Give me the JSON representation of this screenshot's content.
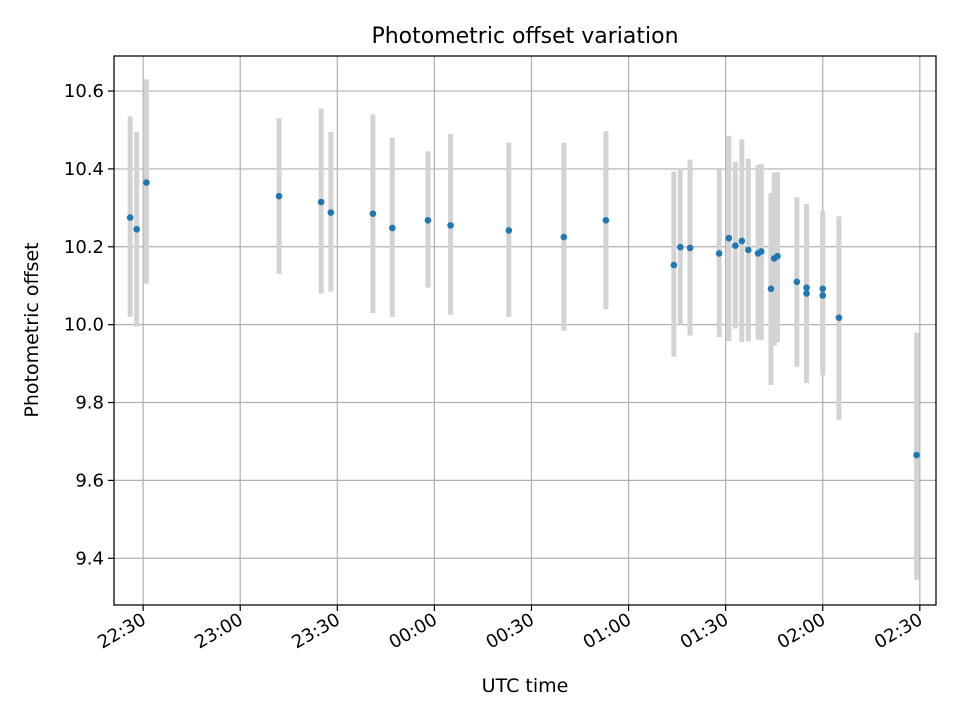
{
  "chart_data": {
    "type": "scatter",
    "title": "Photometric offset variation",
    "xlabel": "UTC time",
    "ylabel": "Photometric offset",
    "x_axis_type": "time",
    "xlim": [
      "22:21",
      "02:35"
    ],
    "ylim": [
      9.28,
      10.69
    ],
    "x_ticks": [
      {
        "label": "22:30",
        "minutes": 1350
      },
      {
        "label": "23:00",
        "minutes": 1380
      },
      {
        "label": "23:30",
        "minutes": 1410
      },
      {
        "label": "00:00",
        "minutes": 1440
      },
      {
        "label": "00:30",
        "minutes": 1470
      },
      {
        "label": "01:00",
        "minutes": 1500
      },
      {
        "label": "01:30",
        "minutes": 1530
      },
      {
        "label": "02:00",
        "minutes": 1560
      },
      {
        "label": "02:30",
        "minutes": 1590
      }
    ],
    "y_ticks": [
      {
        "label": "9.4",
        "value": 9.4
      },
      {
        "label": "9.6",
        "value": 9.6
      },
      {
        "label": "9.8",
        "value": 9.8
      },
      {
        "label": "10.0",
        "value": 10.0
      },
      {
        "label": "10.2",
        "value": 10.2
      },
      {
        "label": "10.4",
        "value": 10.4
      },
      {
        "label": "10.6",
        "value": 10.6
      }
    ],
    "grid": true,
    "marker_color": "#1f77b4",
    "errorbar_color": "#d3d3d3",
    "points": [
      {
        "t": "22:26",
        "y": 10.275,
        "lo": 10.02,
        "hi": 10.535
      },
      {
        "t": "22:28",
        "y": 10.245,
        "lo": 9.995,
        "hi": 10.495
      },
      {
        "t": "22:31",
        "y": 10.365,
        "lo": 10.105,
        "hi": 10.63
      },
      {
        "t": "23:12",
        "y": 10.33,
        "lo": 10.13,
        "hi": 10.53
      },
      {
        "t": "23:25",
        "y": 10.315,
        "lo": 10.08,
        "hi": 10.555
      },
      {
        "t": "23:28",
        "y": 10.288,
        "lo": 10.085,
        "hi": 10.495
      },
      {
        "t": "23:41",
        "y": 10.285,
        "lo": 10.03,
        "hi": 10.54
      },
      {
        "t": "23:47",
        "y": 10.248,
        "lo": 10.02,
        "hi": 10.48
      },
      {
        "t": "23:58",
        "y": 10.268,
        "lo": 10.095,
        "hi": 10.445
      },
      {
        "t": "00:05",
        "y": 10.255,
        "lo": 10.025,
        "hi": 10.49
      },
      {
        "t": "00:23",
        "y": 10.242,
        "lo": 10.02,
        "hi": 10.468
      },
      {
        "t": "00:40",
        "y": 10.225,
        "lo": 9.985,
        "hi": 10.467
      },
      {
        "t": "00:53",
        "y": 10.268,
        "lo": 10.04,
        "hi": 10.497
      },
      {
        "t": "01:14",
        "y": 10.153,
        "lo": 9.918,
        "hi": 10.393
      },
      {
        "t": "01:16",
        "y": 10.199,
        "lo": 10.0,
        "hi": 10.4
      },
      {
        "t": "01:19",
        "y": 10.197,
        "lo": 9.972,
        "hi": 10.424
      },
      {
        "t": "01:28",
        "y": 10.183,
        "lo": 9.968,
        "hi": 10.398
      },
      {
        "t": "01:31",
        "y": 10.222,
        "lo": 9.958,
        "hi": 10.485
      },
      {
        "t": "01:33",
        "y": 10.203,
        "lo": 9.99,
        "hi": 10.418
      },
      {
        "t": "01:35",
        "y": 10.215,
        "lo": 9.955,
        "hi": 10.476
      },
      {
        "t": "01:37",
        "y": 10.192,
        "lo": 9.957,
        "hi": 10.426
      },
      {
        "t": "01:40",
        "y": 10.183,
        "lo": 9.962,
        "hi": 10.41
      },
      {
        "t": "01:41",
        "y": 10.188,
        "lo": 9.96,
        "hi": 10.413
      },
      {
        "t": "01:44",
        "y": 10.092,
        "lo": 9.845,
        "hi": 10.338
      },
      {
        "t": "01:45",
        "y": 10.17,
        "lo": 9.946,
        "hi": 10.39
      },
      {
        "t": "01:46",
        "y": 10.176,
        "lo": 9.955,
        "hi": 10.392
      },
      {
        "t": "01:52",
        "y": 10.11,
        "lo": 9.892,
        "hi": 10.327
      },
      {
        "t": "01:55",
        "y": 10.095,
        "lo": 9.875,
        "hi": 10.31
      },
      {
        "t": "01:55",
        "y": 10.08,
        "lo": 9.85,
        "hi": 10.3
      },
      {
        "t": "02:00",
        "y": 10.092,
        "lo": 9.888,
        "hi": 10.292
      },
      {
        "t": "02:00",
        "y": 10.075,
        "lo": 9.87,
        "hi": 10.285
      },
      {
        "t": "02:05",
        "y": 10.018,
        "lo": 9.755,
        "hi": 10.278
      },
      {
        "t": "02:29",
        "y": 9.665,
        "lo": 9.345,
        "hi": 9.98
      }
    ]
  }
}
